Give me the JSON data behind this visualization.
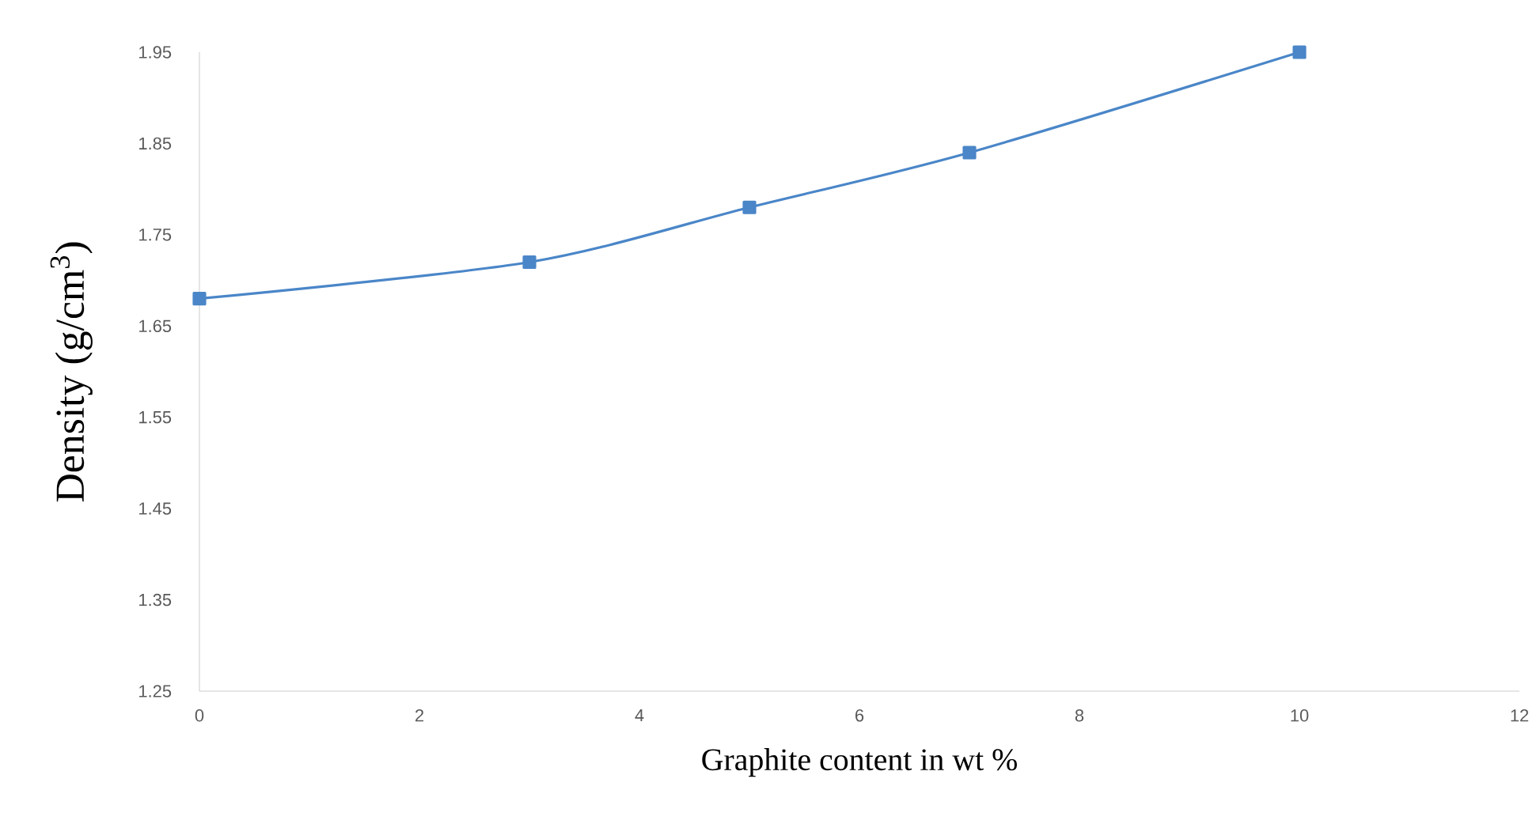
{
  "chart_data": {
    "type": "line",
    "xlabel": "Graphite content in wt %",
    "ylabel": "Density (g/cm$^{3}$)",
    "x": [
      0,
      3,
      5,
      7,
      10
    ],
    "series": [
      {
        "color": "#4a86c8",
        "values": [
          1.68,
          1.72,
          1.78,
          1.84,
          1.95
        ]
      }
    ],
    "xlim": [
      0,
      12
    ],
    "ylim": [
      1.25,
      1.95
    ],
    "xticks": [
      0,
      2,
      4,
      6,
      8,
      10,
      12
    ],
    "yticks": [
      1.25,
      1.35,
      1.45,
      1.55,
      1.65,
      1.75,
      1.85,
      1.95
    ],
    "marker": "square",
    "line_style": "solid"
  }
}
